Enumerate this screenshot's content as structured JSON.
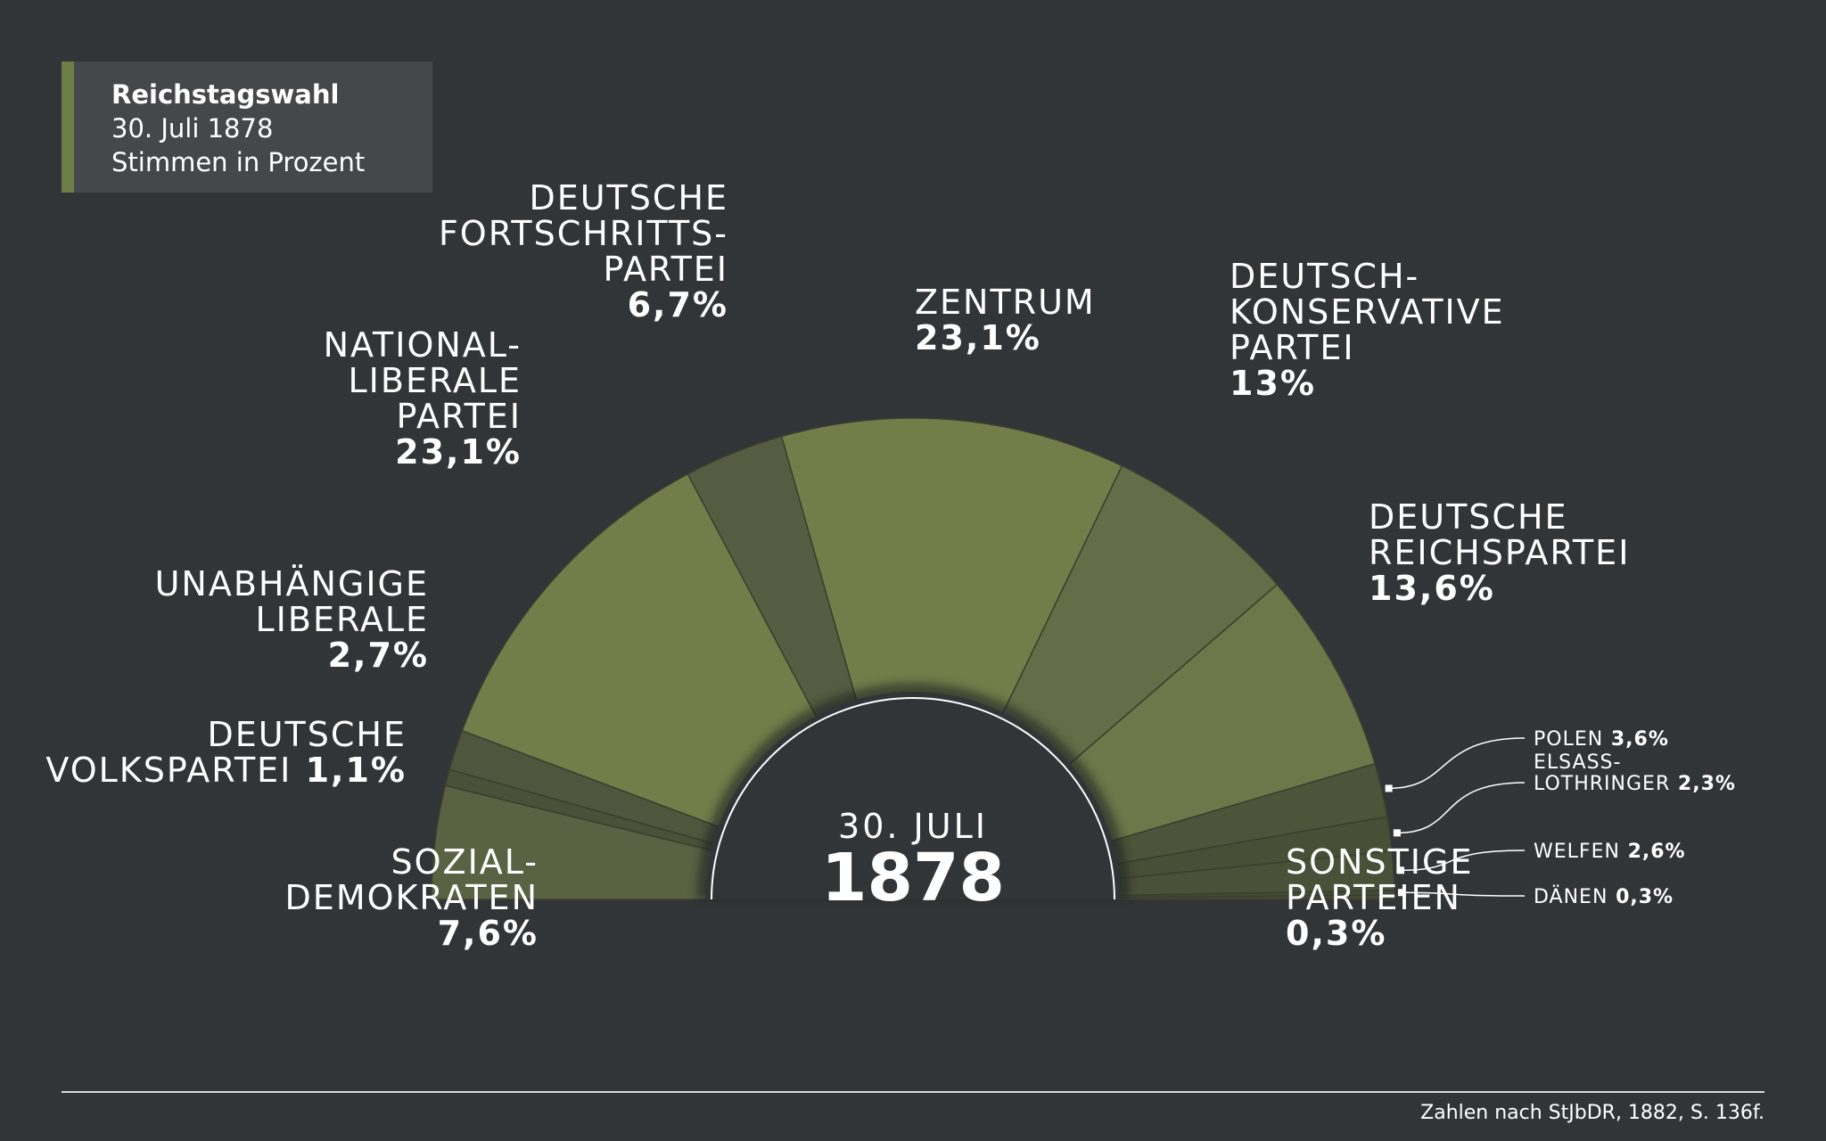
{
  "header": {
    "title": "Reichstagswahl",
    "date": "30. Juli 1878",
    "subtitle": "Stimmen in Prozent"
  },
  "center_label": {
    "date": "30. JULI",
    "year": "1878"
  },
  "footer": {
    "source": "Zahlen nach StJbDR, 1882, S. 136f."
  },
  "colors": {
    "background": "#323538",
    "accent": "#6f7d49",
    "segment_light": "#737d4a",
    "segment_mid": "#646d47",
    "segment_dark": "#535a40"
  },
  "chart_data": {
    "type": "pie",
    "subtype": "semicircle",
    "title": "Reichstagswahl",
    "unit": "%",
    "series": [
      {
        "name": "SOZIALDEMOKRATEN",
        "value": 7.6,
        "label": [
          "SOZIAL-",
          "DEMOKRATEN"
        ],
        "value_label": "7,6%",
        "color": "#5a6243"
      },
      {
        "name": "DEUTSCHE VOLKSPARTEI",
        "value": 1.1,
        "label": [
          "DEUTSCHE",
          "VOLKSPARTEI"
        ],
        "value_label": "1,1%",
        "color": "#4b5039"
      },
      {
        "name": "UNABHÄNGIGE LIBERALE",
        "value": 2.7,
        "label": [
          "UNABHÄNGIGE",
          "LIBERALE"
        ],
        "value_label": "2,7%",
        "color": "#50563e"
      },
      {
        "name": "NATIONALLIBERALE PARTEI",
        "value": 23.1,
        "label": [
          "NATIONAL-",
          "LIBERALE",
          "PARTEI"
        ],
        "value_label": "23,1%",
        "color": "#737d4a"
      },
      {
        "name": "DEUTSCHE FORTSCHRITTSPARTEI",
        "value": 6.7,
        "label": [
          "DEUTSCHE",
          "FORTSCHRITTS-",
          "PARTEI"
        ],
        "value_label": "6,7%",
        "color": "#555c41"
      },
      {
        "name": "ZENTRUM",
        "value": 23.1,
        "label": [
          "ZENTRUM"
        ],
        "value_label": "23,1%",
        "color": "#737d4a"
      },
      {
        "name": "DEUTSCHKONSERVATIVE PARTEI",
        "value": 13,
        "label": [
          "DEUTSCH-",
          "KONSERVATIVE",
          "PARTEI"
        ],
        "value_label": "13%",
        "color": "#646d47"
      },
      {
        "name": "DEUTSCHE REICHSPARTEI",
        "value": 13.6,
        "label": [
          "DEUTSCHE",
          "REICHSPARTEI"
        ],
        "value_label": "13,6%",
        "color": "#6d7749"
      },
      {
        "name": "POLEN",
        "value": 3.6,
        "label": [
          "POLEN"
        ],
        "value_label": "3,6%",
        "color": "#4e5439"
      },
      {
        "name": "ELSASS-LOTHRINGER",
        "value": 2.3,
        "label": [
          "ELSASS-",
          "LOTHRINGER"
        ],
        "value_label": "2,3%",
        "color": "#494e37"
      },
      {
        "name": "WELFEN",
        "value": 2.6,
        "label": [
          "WELFEN"
        ],
        "value_label": "2,6%",
        "color": "#4b5038"
      },
      {
        "name": "DÄNEN",
        "value": 0.3,
        "label": [
          "DÄNEN"
        ],
        "value_label": "0,3%",
        "color": "#464b36"
      },
      {
        "name": "SONSTIGE PARTEIEN",
        "value": 0.3,
        "label": [
          "SONSTIGE",
          "PARTEIEN"
        ],
        "value_label": "0,3%",
        "color": "#444834"
      }
    ]
  }
}
